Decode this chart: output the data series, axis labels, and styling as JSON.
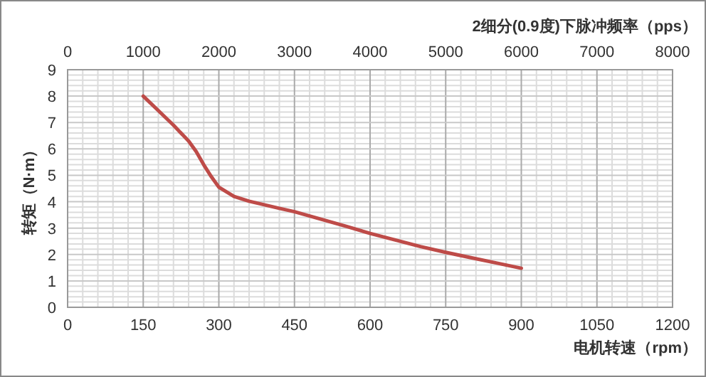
{
  "chart_data": {
    "type": "line",
    "title": "2细分(0.9度)下脉冲频率（pps）",
    "xlabel": "电机转速（rpm）",
    "ylabel": "转矩（N·m）",
    "x": [
      150,
      180,
      210,
      240,
      255,
      270,
      285,
      300,
      330,
      360,
      420,
      450,
      500,
      550,
      600,
      650,
      700,
      750,
      800,
      850,
      900
    ],
    "series": [
      {
        "color": "#be4b48",
        "values": [
          8.0,
          7.45,
          6.9,
          6.3,
          5.9,
          5.4,
          4.95,
          4.55,
          4.2,
          4.02,
          3.75,
          3.62,
          3.35,
          3.08,
          2.8,
          2.55,
          2.3,
          2.08,
          1.88,
          1.68,
          1.48
        ]
      }
    ],
    "xlim": [
      0,
      1200
    ],
    "xticks": [
      0,
      150,
      300,
      450,
      600,
      750,
      900,
      1050,
      1200
    ],
    "x2lim": [
      0,
      8000
    ],
    "x2ticks": [
      0,
      1000,
      2000,
      3000,
      4000,
      5000,
      6000,
      7000,
      8000
    ],
    "ylim": [
      0,
      9
    ],
    "yticks": [
      0,
      1,
      2,
      3,
      4,
      5,
      6,
      7,
      8,
      9
    ],
    "grid": true,
    "marker": "none",
    "line_style": "solid"
  }
}
